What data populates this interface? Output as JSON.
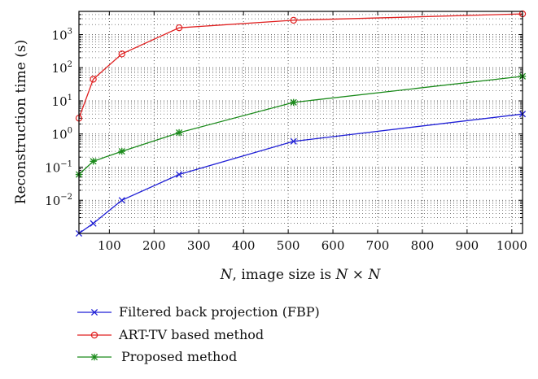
{
  "chart_data": {
    "type": "line",
    "title": "",
    "xlabel": "N, image size is N × N",
    "xlabel_parts": [
      "N",
      ", image size is ",
      "N",
      " × ",
      "N"
    ],
    "ylabel": "Reconstruction time (s)",
    "xlim": [
      32,
      1024
    ],
    "ylim": [
      0.001,
      5000
    ],
    "yscale": "log",
    "grid": true,
    "legend_position": "bottom",
    "x_ticks": [
      100,
      200,
      300,
      400,
      500,
      600,
      700,
      800,
      900,
      1000
    ],
    "y_ticks": [
      {
        "value": 0.01,
        "base": "10",
        "exp": "−2"
      },
      {
        "value": 0.1,
        "base": "10",
        "exp": "−1"
      },
      {
        "value": 1,
        "base": "10",
        "exp": "0"
      },
      {
        "value": 10,
        "base": "10",
        "exp": "1"
      },
      {
        "value": 100,
        "base": "10",
        "exp": "2"
      },
      {
        "value": 1000,
        "base": "10",
        "exp": "3"
      }
    ],
    "x": [
      32,
      64,
      128,
      256,
      512,
      1024
    ],
    "series": [
      {
        "name": "Filtered back projection (FBP)",
        "color": "#1f1fd6",
        "marker": "x",
        "values": [
          0.001,
          0.002,
          0.01,
          0.06,
          0.6,
          4
        ]
      },
      {
        "name": "ART-TV based method",
        "color": "#e02020",
        "marker": "circle",
        "values": [
          3,
          45,
          260,
          1600,
          2700,
          4200
        ]
      },
      {
        "name": "Proposed method",
        "color": "#1a8a1a",
        "marker": "star",
        "values": [
          0.06,
          0.15,
          0.3,
          1.1,
          9,
          55
        ]
      }
    ]
  }
}
